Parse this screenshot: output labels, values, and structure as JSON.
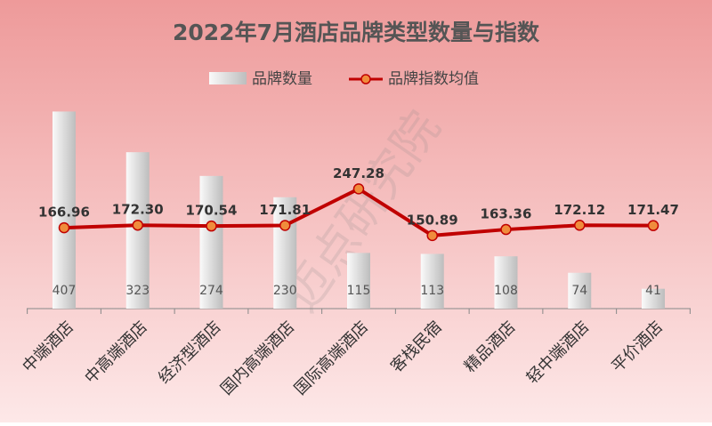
{
  "chart_data": {
    "type": "bar-line",
    "title": "2022年7月酒店品牌类型数量与指数",
    "watermark": "迈点研究院",
    "categories": [
      "中端酒店",
      "中高端酒店",
      "经济型酒店",
      "国内高端酒店",
      "国际高端酒店",
      "客栈民宿",
      "精品酒店",
      "轻中端酒店",
      "平价酒店"
    ],
    "series": [
      {
        "name": "品牌数量",
        "type": "bar",
        "color": "#d0d0d0",
        "values": [
          407,
          323,
          274,
          230,
          115,
          113,
          108,
          74,
          41
        ]
      },
      {
        "name": "品牌指数均值",
        "type": "line",
        "axis": "y2",
        "color": "#c00000",
        "marker_color": "#f08c3c",
        "values": [
          166.96,
          172.3,
          170.54,
          171.81,
          247.28,
          150.89,
          163.36,
          172.12,
          171.47
        ],
        "value_labels": [
          "166.96",
          "172.30",
          "170.54",
          "171.81",
          "247.28",
          "150.89",
          "163.36",
          "172.12",
          "171.47"
        ]
      }
    ],
    "ylim": [
      0,
      450
    ],
    "y2lim": [
      0,
      450
    ],
    "legend": "top"
  }
}
